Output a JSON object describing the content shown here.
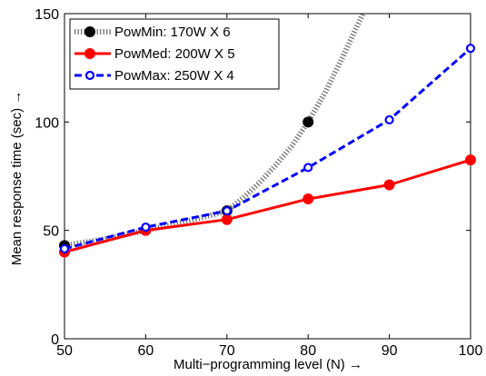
{
  "chart_data": {
    "type": "line",
    "title": "",
    "xlabel": "Multi−programming level (N) →",
    "ylabel": "Mean response time (sec) →",
    "xlim": [
      50,
      100
    ],
    "ylim": [
      0,
      150
    ],
    "xticks": [
      50,
      60,
      70,
      80,
      90,
      100
    ],
    "yticks": [
      0,
      50,
      100,
      150
    ],
    "grid": false,
    "legend_position": "top-left",
    "series": [
      {
        "name": "PowMin: 170W X 6",
        "color": "#000000",
        "line_style": "dotted",
        "marker": "filled-circle",
        "x": [
          50,
          60,
          70,
          80
        ],
        "y": [
          43,
          50,
          59,
          100
        ],
        "curve_x": [
          50,
          55,
          60,
          65,
          70,
          72,
          74,
          76,
          78,
          80,
          82,
          84,
          86,
          88
        ],
        "curve_y": [
          43,
          46,
          50,
          54,
          59,
          65,
          72,
          80,
          89,
          100,
          113,
          128,
          144,
          160
        ]
      },
      {
        "name": "PowMed: 200W X 5",
        "color": "#ff0000",
        "line_style": "solid",
        "marker": "filled-circle",
        "x": [
          50,
          60,
          70,
          80,
          90,
          100
        ],
        "y": [
          40,
          50,
          55,
          64.5,
          71,
          82.5
        ]
      },
      {
        "name": "PowMax: 250W X 4",
        "color": "#0000ff",
        "line_style": "dashed",
        "marker": "open-circle",
        "x": [
          50,
          60,
          70,
          80,
          90,
          100
        ],
        "y": [
          41.5,
          51.5,
          59,
          79,
          101,
          134
        ]
      }
    ]
  }
}
